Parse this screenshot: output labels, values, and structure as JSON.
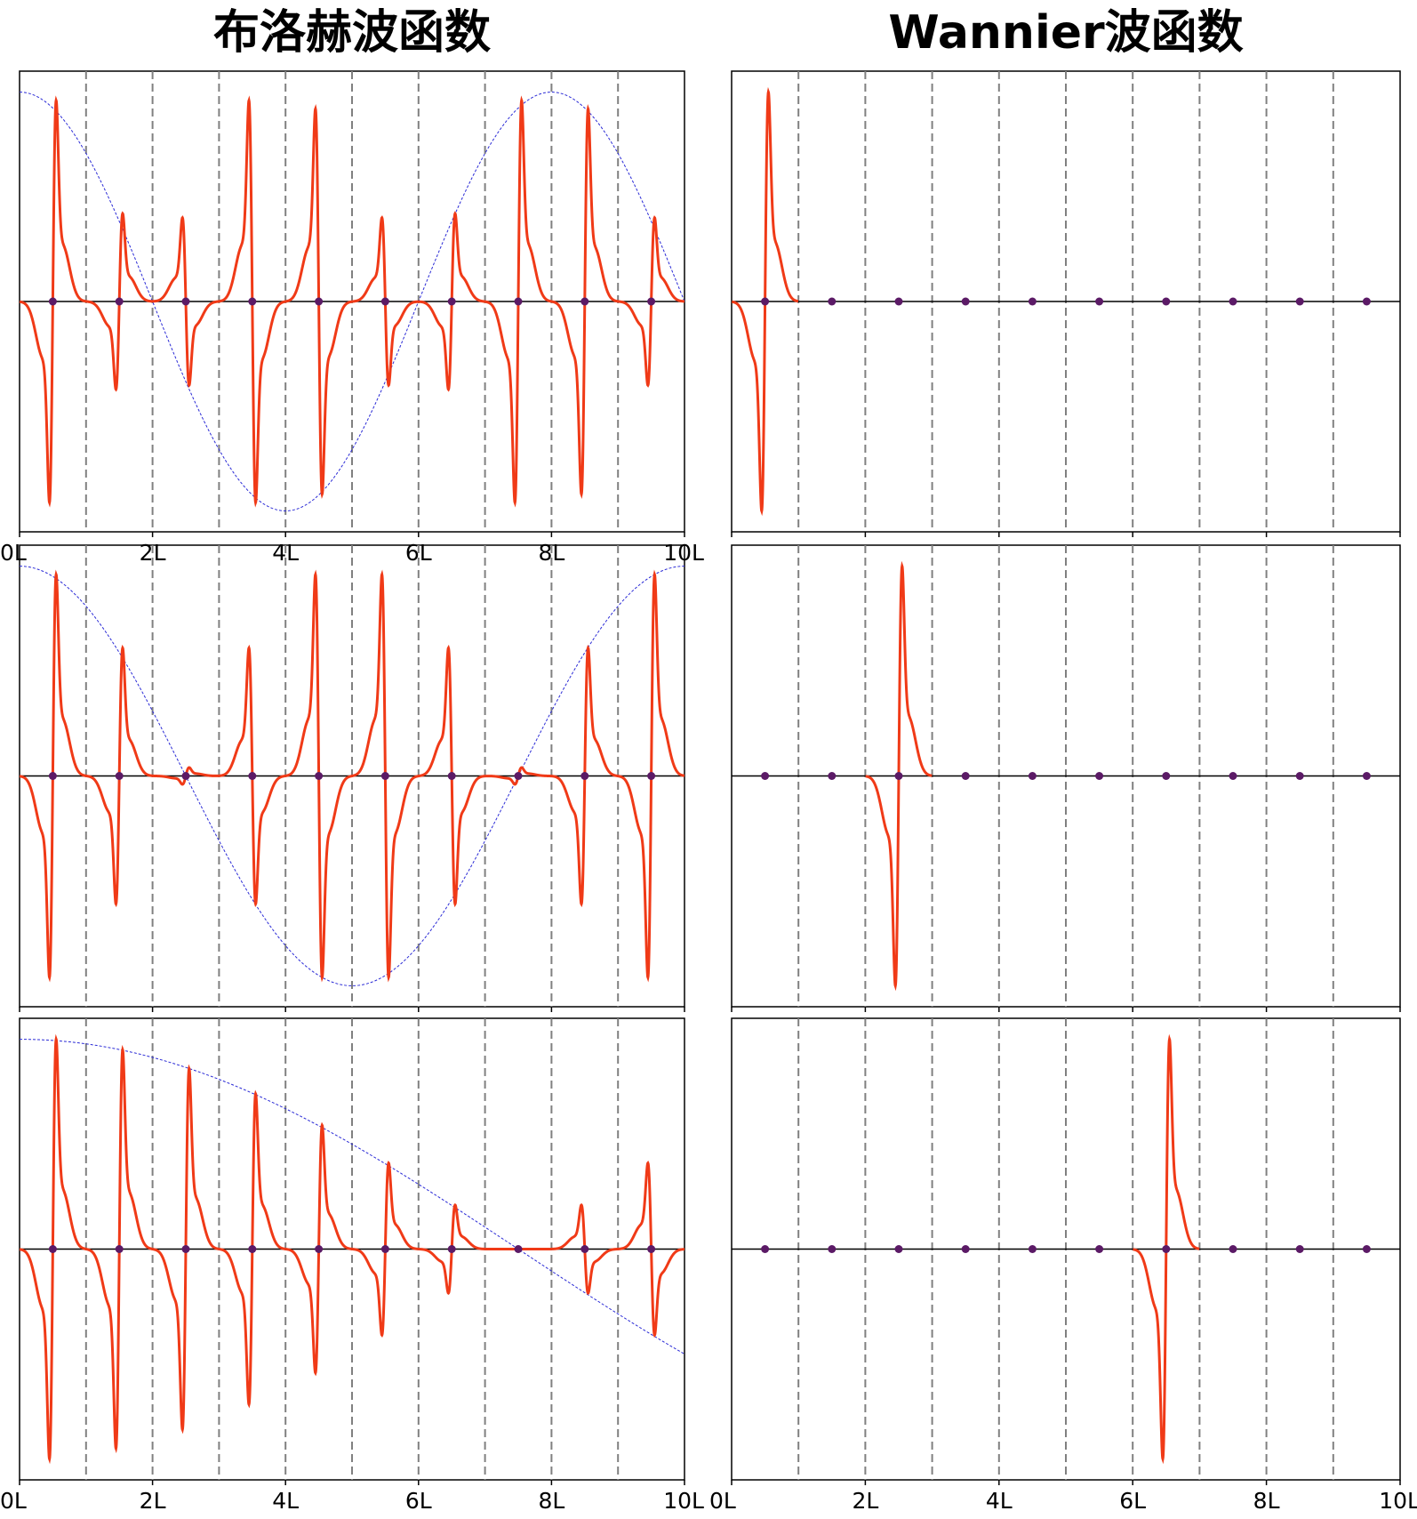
{
  "titles": {
    "left": "布洛赫波函数",
    "right": "Wannier波函数"
  },
  "x_tick_labels": [
    "0L",
    "2L",
    "4L",
    "6L",
    "8L",
    "10L"
  ],
  "colors": {
    "wavefunction": "#f03a17",
    "envelope": "#2b2bd6",
    "cell_boundary": "#808080",
    "axis": "#000000",
    "atom_marker": "#5b1a66"
  },
  "chart_data": [
    {
      "type": "line",
      "panel": "bloch-k1",
      "column": "left",
      "title": "布洛赫波函数",
      "x_range": [
        0,
        10
      ],
      "x_ticks": [
        0,
        2,
        4,
        6,
        8,
        10
      ],
      "x_tick_labels": [
        "0L",
        "2L",
        "4L",
        "6L",
        "8L",
        "10L"
      ],
      "y_range": [
        -1.1,
        1.1
      ],
      "cell_boundaries": [
        1,
        2,
        3,
        4,
        5,
        6,
        7,
        8,
        9
      ],
      "atom_positions": [
        0.5,
        1.5,
        2.5,
        3.5,
        4.5,
        5.5,
        6.5,
        7.5,
        8.5,
        9.5
      ],
      "envelope": "cos",
      "envelope_phase": 0.0,
      "envelope_wavelength": 8,
      "peak_width": 0.055,
      "series": [
        {
          "name": "",
          "atom_amplitudes": [
            0.96,
            0.42,
            -0.4,
            -0.96,
            -0.92,
            -0.4,
            0.42,
            0.96,
            0.92,
            0.4
          ]
        }
      ]
    },
    {
      "type": "line",
      "panel": "bloch-k2",
      "column": "left",
      "x_range": [
        0,
        10
      ],
      "x_ticks": [
        0,
        2,
        4,
        6,
        8,
        10
      ],
      "y_range": [
        -1.1,
        1.1
      ],
      "cell_boundaries": [
        1,
        2,
        3,
        4,
        5,
        6,
        7,
        8,
        9
      ],
      "atom_positions": [
        0.5,
        1.5,
        2.5,
        3.5,
        4.5,
        5.5,
        6.5,
        7.5,
        8.5,
        9.5
      ],
      "envelope": "cos",
      "envelope_phase": 0.0,
      "envelope_wavelength": 10,
      "peak_width": 0.055,
      "series": [
        {
          "name": "",
          "atom_amplitudes": [
            0.96,
            0.61,
            0.04,
            -0.61,
            -0.96,
            -0.96,
            -0.61,
            0.04,
            0.61,
            0.96
          ]
        }
      ]
    },
    {
      "type": "line",
      "panel": "bloch-k3",
      "column": "left",
      "x_range": [
        0,
        10
      ],
      "x_ticks": [
        0,
        2,
        4,
        6,
        8,
        10
      ],
      "x_tick_labels": [
        "0L",
        "2L",
        "4L",
        "6L",
        "8L",
        "10L"
      ],
      "y_range": [
        -1.1,
        1.1
      ],
      "cell_boundaries": [
        1,
        2,
        3,
        4,
        5,
        6,
        7,
        8,
        9
      ],
      "atom_positions": [
        0.5,
        1.5,
        2.5,
        3.5,
        4.5,
        5.5,
        6.5,
        7.5,
        8.5,
        9.5
      ],
      "envelope": "cos",
      "envelope_phase": 0.0,
      "envelope_wavelength": 30,
      "peak_width": 0.055,
      "series": [
        {
          "name": "",
          "atom_amplitudes": [
            1.0,
            0.95,
            0.86,
            0.74,
            0.59,
            0.41,
            0.21,
            0.0,
            -0.21,
            -0.41
          ]
        }
      ]
    },
    {
      "type": "line",
      "panel": "wannier-1",
      "column": "right",
      "title": "Wannier波函数",
      "x_range": [
        0,
        10
      ],
      "x_ticks": [
        0,
        2,
        4,
        6,
        8,
        10
      ],
      "y_range": [
        -1.1,
        1.1
      ],
      "cell_boundaries": [
        1,
        2,
        3,
        4,
        5,
        6,
        7,
        8,
        9
      ],
      "atom_positions": [
        0.5,
        1.5,
        2.5,
        3.5,
        4.5,
        5.5,
        6.5,
        7.5,
        8.5,
        9.5
      ],
      "peak_width": 0.055,
      "series": [
        {
          "name": "",
          "atom_amplitudes": [
            1.0,
            0,
            0,
            0,
            0,
            0,
            0,
            0,
            0,
            0
          ]
        }
      ]
    },
    {
      "type": "line",
      "panel": "wannier-2",
      "column": "right",
      "x_range": [
        0,
        10
      ],
      "x_ticks": [
        0,
        2,
        4,
        6,
        8,
        10
      ],
      "y_range": [
        -1.1,
        1.1
      ],
      "cell_boundaries": [
        1,
        2,
        3,
        4,
        5,
        6,
        7,
        8,
        9
      ],
      "atom_positions": [
        0.5,
        1.5,
        2.5,
        3.5,
        4.5,
        5.5,
        6.5,
        7.5,
        8.5,
        9.5
      ],
      "peak_width": 0.055,
      "series": [
        {
          "name": "",
          "atom_amplitudes": [
            0,
            0,
            1.0,
            0,
            0,
            0,
            0,
            0,
            0,
            0
          ]
        }
      ]
    },
    {
      "type": "line",
      "panel": "wannier-3",
      "column": "right",
      "x_range": [
        0,
        10
      ],
      "x_ticks": [
        0,
        2,
        4,
        6,
        8,
        10
      ],
      "x_tick_labels": [
        "0L",
        "2L",
        "4L",
        "6L",
        "8L",
        "10L"
      ],
      "y_range": [
        -1.1,
        1.1
      ],
      "cell_boundaries": [
        1,
        2,
        3,
        4,
        5,
        6,
        7,
        8,
        9
      ],
      "atom_positions": [
        0.5,
        1.5,
        2.5,
        3.5,
        4.5,
        5.5,
        6.5,
        7.5,
        8.5,
        9.5
      ],
      "peak_width": 0.055,
      "series": [
        {
          "name": "",
          "atom_amplitudes": [
            0,
            0,
            0,
            0,
            0,
            0,
            1.0,
            0,
            0,
            0
          ]
        }
      ]
    }
  ]
}
